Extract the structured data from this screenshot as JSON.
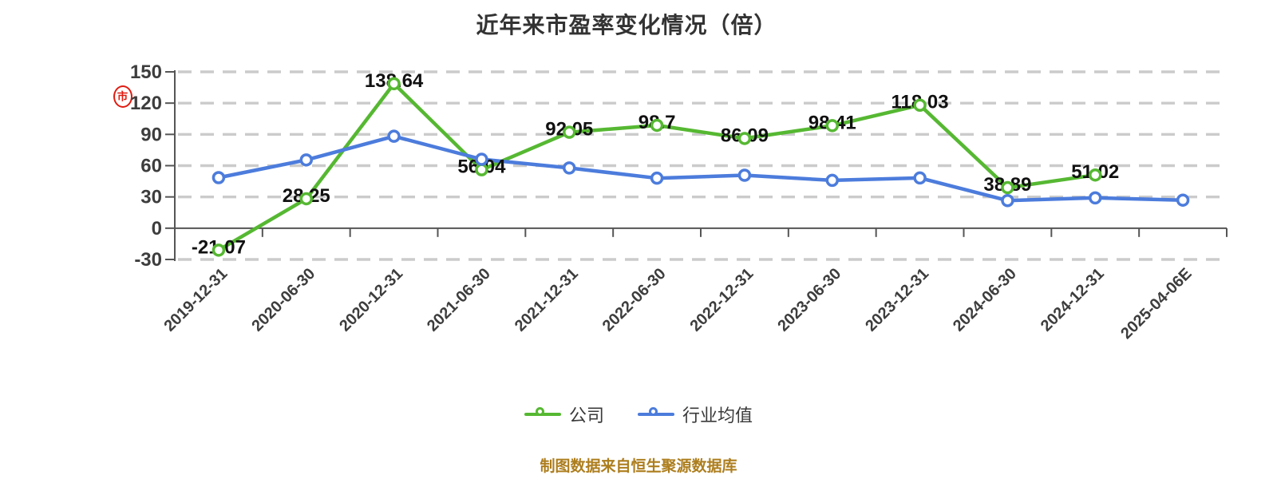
{
  "title": "近年来市盈率变化情况（倍）",
  "footer": {
    "source_note": "制图数据来自恒生聚源数据库"
  },
  "seal": {
    "icon": "red-seal-stamp",
    "color": "#e01b10"
  },
  "axis_colors": {
    "axis_line": "#555555",
    "tick_label": "#3d3d3d",
    "gridline": "#cbcbcb"
  },
  "data_label_color": "#111111",
  "chart_data": {
    "type": "line",
    "title": "近年来市盈率变化情况（倍）",
    "categories": [
      "2019-12-31",
      "2020-06-30",
      "2020-12-31",
      "2021-06-30",
      "2021-12-31",
      "2022-06-30",
      "2022-12-31",
      "2023-06-30",
      "2023-12-31",
      "2024-06-30",
      "2024-12-31",
      "2025-04-06E"
    ],
    "series": [
      {
        "name": "公司",
        "color": "#56b832",
        "show_labels": true,
        "values": [
          -21.07,
          28.25,
          138.64,
          56.04,
          92.05,
          98.7,
          86.09,
          98.41,
          118.03,
          38.89,
          51.02,
          null
        ],
        "labels": [
          "-21.07",
          "28.25",
          "138.64",
          "56.04",
          "92.05",
          "98.7",
          "86.09",
          "98.41",
          "118.03",
          "38.89",
          "51.02",
          ""
        ]
      },
      {
        "name": "行业均值",
        "color": "#4c7cdc",
        "show_labels": false,
        "values": [
          48.5,
          65.5,
          88.2,
          66.1,
          57.8,
          48.0,
          50.8,
          45.9,
          48.2,
          26.5,
          29.1,
          26.9
        ],
        "labels": []
      }
    ],
    "yticks": [
      150,
      120,
      90,
      60,
      30,
      0,
      -30
    ],
    "ylim": [
      -30,
      150
    ],
    "xlabel": "",
    "ylabel": "",
    "grid": "horizontal-dashed",
    "legend_position": "bottom",
    "x_label_rotation": 45
  }
}
